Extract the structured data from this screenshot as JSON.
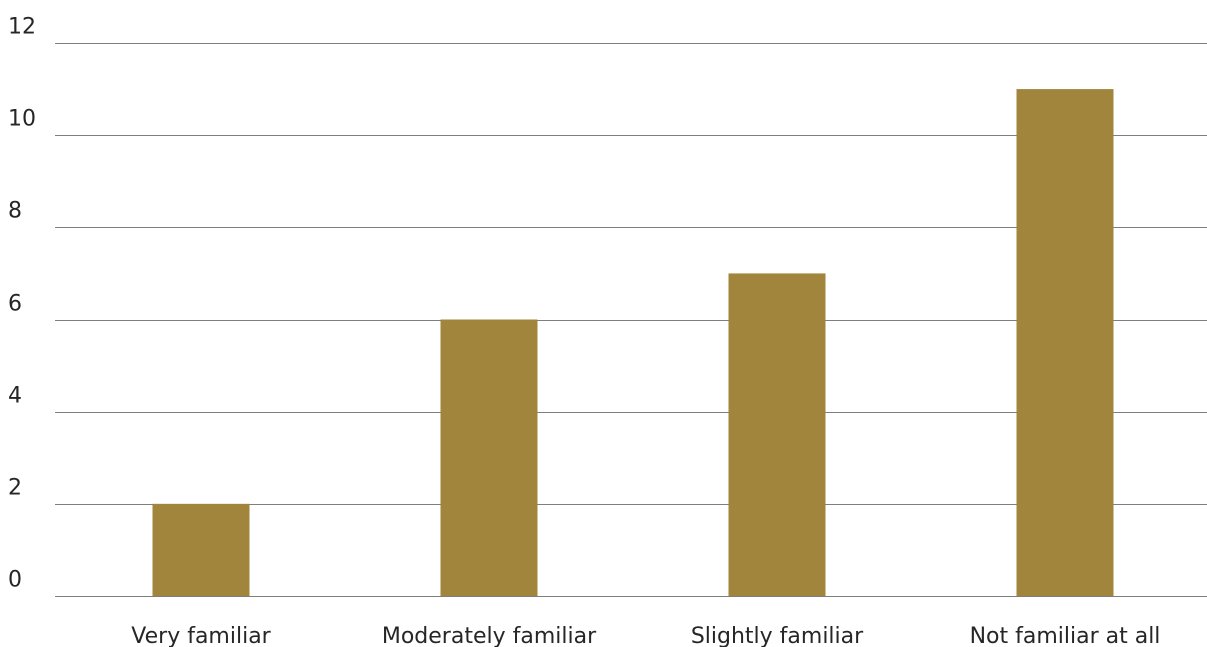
{
  "chart_data": {
    "type": "bar",
    "categories": [
      "Very familiar",
      "Moderately familiar",
      "Slightly familiar",
      "Not familiar at all"
    ],
    "values": [
      2,
      6,
      7,
      11
    ],
    "ylim": [
      0,
      12
    ],
    "yticks": [
      0,
      2,
      4,
      6,
      8,
      10,
      12
    ],
    "grid": true,
    "bar_color": "#a2853d",
    "grid_color": "#7f7f7f",
    "text_color": "#262626"
  }
}
